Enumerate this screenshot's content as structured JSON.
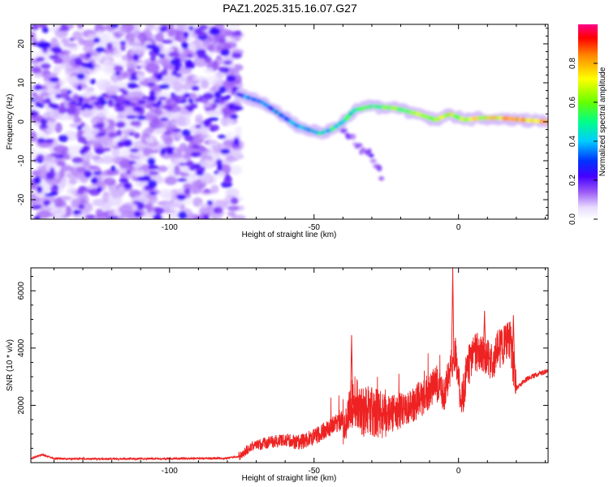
{
  "title": "PAZ1.2025.315.16.07.G27",
  "chart_data": [
    {
      "type": "heatmap",
      "title": "PAZ1.2025.315.16.07.G27",
      "xlabel": "Height of straight line (km)",
      "ylabel": "Frequency (Hz)",
      "xlim": [
        -148,
        31
      ],
      "ylim": [
        -25,
        25
      ],
      "xticks": [
        -100,
        -50,
        0
      ],
      "yticks": [
        -20,
        -10,
        0,
        10,
        20
      ],
      "colorbar": {
        "label": "Normalized spectral amplitude",
        "range": [
          0,
          1
        ],
        "ticks": [
          0.0,
          0.2,
          0.4,
          0.6,
          0.8
        ]
      },
      "main_track": [
        {
          "x": -76,
          "y": 7
        },
        {
          "x": -72,
          "y": 6
        },
        {
          "x": -68,
          "y": 5
        },
        {
          "x": -64,
          "y": 3
        },
        {
          "x": -60,
          "y": 1
        },
        {
          "x": -56,
          "y": -1
        },
        {
          "x": -52,
          "y": -2
        },
        {
          "x": -48,
          "y": -3
        },
        {
          "x": -44,
          "y": -2
        },
        {
          "x": -40,
          "y": 0
        },
        {
          "x": -36,
          "y": 3
        },
        {
          "x": -30,
          "y": 4
        },
        {
          "x": -22,
          "y": 3.5
        },
        {
          "x": -14,
          "y": 2
        },
        {
          "x": -8,
          "y": 0.5
        },
        {
          "x": -3,
          "y": 2
        },
        {
          "x": 2,
          "y": 0.5
        },
        {
          "x": 8,
          "y": 1
        },
        {
          "x": 14,
          "y": 1
        },
        {
          "x": 22,
          "y": 0.5
        },
        {
          "x": 31,
          "y": 0
        }
      ],
      "secondary_track": [
        {
          "x": -40,
          "y": -2
        },
        {
          "x": -35,
          "y": -6
        },
        {
          "x": -30,
          "y": -9
        },
        {
          "x": -27,
          "y": -13
        },
        {
          "x": -26,
          "y": -16
        }
      ],
      "noise_region": {
        "x": [
          -148,
          -76
        ],
        "y": [
          -25,
          25
        ]
      }
    },
    {
      "type": "line",
      "xlabel": "Height of straight line (km)",
      "ylabel": "SNR (10 * v/v)",
      "xlim": [
        -148,
        31
      ],
      "ylim": [
        0,
        6800
      ],
      "xticks": [
        -100,
        -50,
        0
      ],
      "yticks": [
        2000,
        4000,
        6000
      ],
      "color": "#ee2222",
      "trend": [
        {
          "x": -148,
          "y": 150
        },
        {
          "x": -144,
          "y": 280
        },
        {
          "x": -140,
          "y": 140
        },
        {
          "x": -120,
          "y": 130
        },
        {
          "x": -100,
          "y": 140
        },
        {
          "x": -80,
          "y": 150
        },
        {
          "x": -76,
          "y": 220
        },
        {
          "x": -72,
          "y": 550
        },
        {
          "x": -66,
          "y": 700
        },
        {
          "x": -60,
          "y": 780
        },
        {
          "x": -55,
          "y": 700
        },
        {
          "x": -50,
          "y": 900
        },
        {
          "x": -45,
          "y": 1200
        },
        {
          "x": -40,
          "y": 1500
        },
        {
          "x": -36,
          "y": 2200
        },
        {
          "x": -33,
          "y": 1800
        },
        {
          "x": -28,
          "y": 1700
        },
        {
          "x": -24,
          "y": 1700
        },
        {
          "x": -20,
          "y": 1800
        },
        {
          "x": -16,
          "y": 2000
        },
        {
          "x": -12,
          "y": 2300
        },
        {
          "x": -8,
          "y": 2800
        },
        {
          "x": -5,
          "y": 2400
        },
        {
          "x": -3,
          "y": 3200
        },
        {
          "x": -1,
          "y": 3800
        },
        {
          "x": 1,
          "y": 2000
        },
        {
          "x": 3,
          "y": 3300
        },
        {
          "x": 6,
          "y": 3900
        },
        {
          "x": 9,
          "y": 3700
        },
        {
          "x": 12,
          "y": 3600
        },
        {
          "x": 15,
          "y": 4100
        },
        {
          "x": 18,
          "y": 4300
        },
        {
          "x": 19,
          "y": 3300
        },
        {
          "x": 20,
          "y": 2600
        },
        {
          "x": 24,
          "y": 2950
        },
        {
          "x": 28,
          "y": 3100
        },
        {
          "x": 31,
          "y": 3200
        }
      ],
      "peaks": [
        {
          "x": -37,
          "y": 4450
        },
        {
          "x": -2,
          "y": 6800
        },
        {
          "x": 9,
          "y": 5300
        },
        {
          "x": 19,
          "y": 5150
        }
      ]
    }
  ]
}
